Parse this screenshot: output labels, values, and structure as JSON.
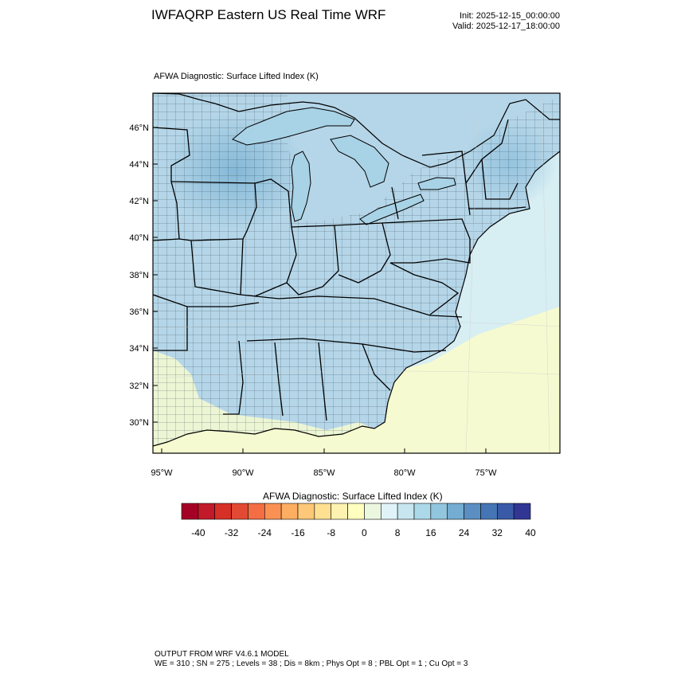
{
  "header": {
    "title": "IWFAQRP Eastern US Real Time WRF",
    "init": "Init: 2025-12-15_00:00:00",
    "valid": "Valid: 2025-12-17_18:00:00"
  },
  "map": {
    "field_title": "AFWA Diagnostic: Surface Lifted Index   (K)",
    "lat_labels": [
      "46°N",
      "44°N",
      "42°N",
      "40°N",
      "38°N",
      "36°N",
      "34°N",
      "32°N",
      "30°N"
    ],
    "lon_labels": [
      "95°W",
      "90°W",
      "85°W",
      "80°W",
      "75°W"
    ],
    "colors": {
      "land_cool": "#b5d6e8",
      "land_mid": "#9cc7df",
      "land_warm": "#f6fad0",
      "ocean": "#d7eef3",
      "lakes": "#a8d2e6"
    }
  },
  "colorbar": {
    "title": "AFWA Diagnostic: Surface Lifted Index  (K)",
    "tick_labels": [
      "-40",
      "-32",
      "-24",
      "-16",
      "-8",
      "0",
      "8",
      "16",
      "24",
      "32",
      "40"
    ],
    "colors": [
      "#a50026",
      "#c21a2b",
      "#d73027",
      "#e34a33",
      "#f46d43",
      "#f99153",
      "#fdae61",
      "#fdc877",
      "#fee090",
      "#fdf2b0",
      "#ffffbf",
      "#ecf7e0",
      "#e0f3f8",
      "#c7e6f0",
      "#abd9e9",
      "#92c5de",
      "#74add1",
      "#5b8fc2",
      "#4575b4",
      "#3a5aa8",
      "#313695"
    ]
  },
  "footer": {
    "line1": "OUTPUT FROM WRF V4.6.1 MODEL",
    "line2": "WE = 310 ; SN = 275 ; Levels = 38 ; Dis = 8km ; Phys Opt = 8 ; PBL Opt = 1 ; Cu Opt = 3"
  }
}
